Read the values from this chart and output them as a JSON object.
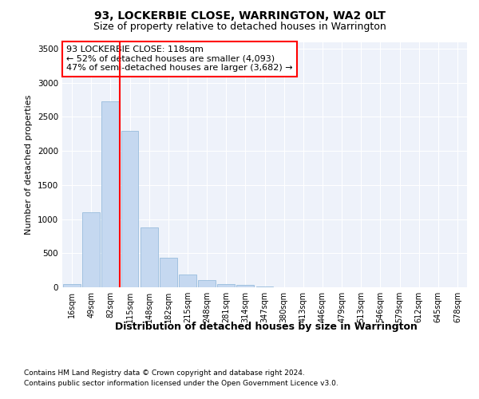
{
  "title1": "93, LOCKERBIE CLOSE, WARRINGTON, WA2 0LT",
  "title2": "Size of property relative to detached houses in Warrington",
  "xlabel": "Distribution of detached houses by size in Warrington",
  "ylabel": "Number of detached properties",
  "categories": [
    "16sqm",
    "49sqm",
    "82sqm",
    "115sqm",
    "148sqm",
    "182sqm",
    "215sqm",
    "248sqm",
    "281sqm",
    "314sqm",
    "347sqm",
    "380sqm",
    "413sqm",
    "446sqm",
    "479sqm",
    "513sqm",
    "546sqm",
    "579sqm",
    "612sqm",
    "645sqm",
    "678sqm"
  ],
  "values": [
    50,
    1100,
    2730,
    2300,
    880,
    430,
    190,
    100,
    50,
    30,
    15,
    5,
    2,
    0,
    0,
    0,
    0,
    0,
    0,
    0,
    0
  ],
  "bar_color": "#c5d8f0",
  "bar_edge_color": "#8ab4d8",
  "vline_color": "red",
  "vline_x": 2.5,
  "annotation_line1": "93 LOCKERBIE CLOSE: 118sqm",
  "annotation_line2": "← 52% of detached houses are smaller (4,093)",
  "annotation_line3": "47% of semi-detached houses are larger (3,682) →",
  "annotation_box_color": "white",
  "annotation_box_edge": "red",
  "ylim": [
    0,
    3600
  ],
  "yticks": [
    0,
    500,
    1000,
    1500,
    2000,
    2500,
    3000,
    3500
  ],
  "footnote1": "Contains HM Land Registry data © Crown copyright and database right 2024.",
  "footnote2": "Contains public sector information licensed under the Open Government Licence v3.0.",
  "bg_color": "#eef2fa",
  "grid_color": "white",
  "title1_fontsize": 10,
  "title2_fontsize": 9,
  "xlabel_fontsize": 9,
  "ylabel_fontsize": 8,
  "tick_fontsize": 7,
  "footnote_fontsize": 6.5,
  "annot_fontsize": 8
}
